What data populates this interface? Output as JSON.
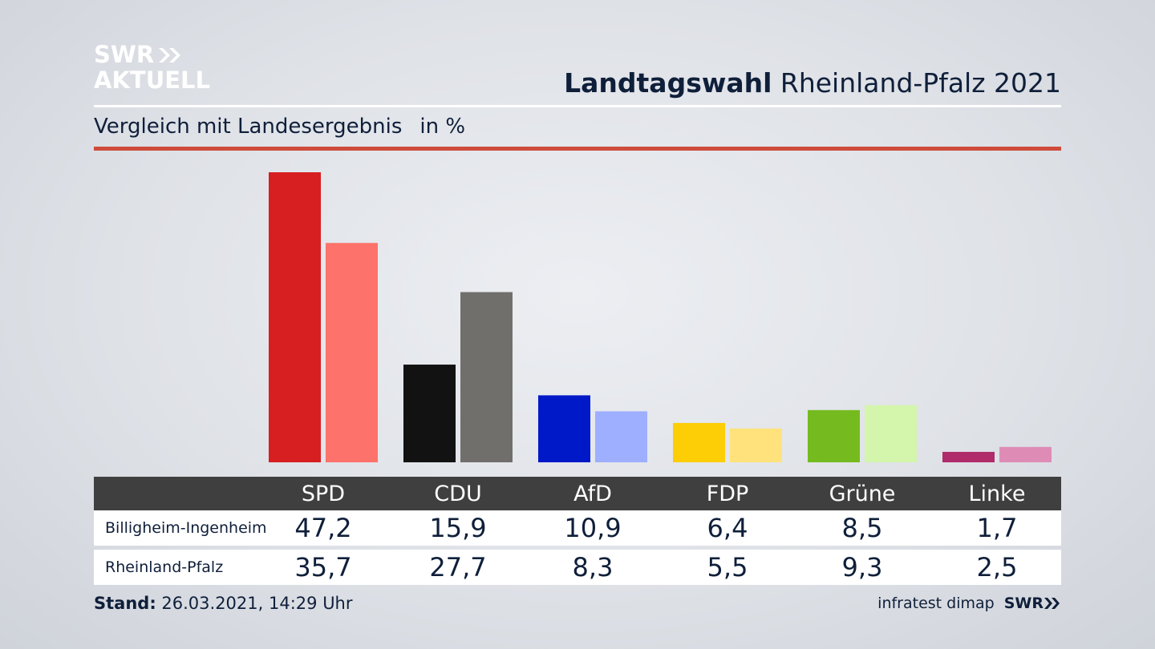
{
  "logo": {
    "line1": "SWR",
    "line2": "AKTUELL"
  },
  "header": {
    "title_bold": "Landtagswahl",
    "title_rest": "Rheinland-Pfalz 2021"
  },
  "subtitle": {
    "text": "Vergleich mit Landesergebnis",
    "unit": "in %"
  },
  "colors": {
    "accent_rule": "#cf4b3b",
    "table_header": "#3f3f3f"
  },
  "chart_data": {
    "type": "bar",
    "categories": [
      "SPD",
      "CDU",
      "AfD",
      "FDP",
      "Grüne",
      "Linke"
    ],
    "series": [
      {
        "name": "Billigheim-Ingenheim",
        "values": [
          47.2,
          15.9,
          10.9,
          6.4,
          8.5,
          1.7
        ],
        "colors": [
          "#d71e20",
          "#121212",
          "#0019c8",
          "#fdcd06",
          "#75bb1f",
          "#b02b6a"
        ]
      },
      {
        "name": "Rheinland-Pfalz",
        "values": [
          35.7,
          27.7,
          8.3,
          5.5,
          9.3,
          2.5
        ],
        "colors": [
          "#fd726a",
          "#706f6c",
          "#9fafff",
          "#ffe27b",
          "#d4f5ac",
          "#de8cb5"
        ]
      }
    ],
    "display_values": [
      [
        "47,2",
        "15,9",
        "10,9",
        "6,4",
        "8,5",
        "1,7"
      ],
      [
        "35,7",
        "27,7",
        "8,3",
        "5,5",
        "9,3",
        "2,5"
      ]
    ],
    "ylim": [
      0,
      47.2
    ],
    "grid": false
  },
  "footer": {
    "stand_label": "Stand:",
    "stand_value": "26.03.2021, 14:29 Uhr",
    "source": "infratest dimap",
    "source_logo": "SWR"
  }
}
